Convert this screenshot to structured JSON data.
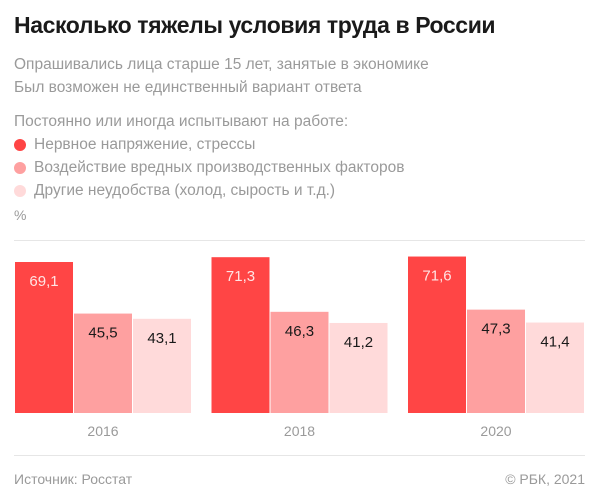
{
  "header": {
    "title": "Насколько тяжелы условия труда в России",
    "subtitle_lines": [
      "Опрашивались лица старше 15 лет, занятые в экономике",
      "Был возможен не единственный вариант ответа"
    ]
  },
  "legend": {
    "heading": "Постоянно или иногда испытывают на работе:"
  },
  "footer": {
    "source": "Источник: Росстат",
    "copyright": "© РБК, 2021"
  },
  "chart_data": {
    "type": "bar",
    "title": "Насколько тяжелы условия труда в России",
    "xlabel": "",
    "ylabel": "%",
    "categories": [
      "2016",
      "2018",
      "2020"
    ],
    "series": [
      {
        "name": "Нервное напряжение, стрессы",
        "color": "#ff4545",
        "label_color": "#ffe4e4",
        "values": [
          69.1,
          71.3,
          71.6
        ],
        "labels": [
          "69,1",
          "71,3",
          "71,6"
        ]
      },
      {
        "name": "Воздействие вредных производственных факторов",
        "color": "#fea0a0",
        "label_color": "#1a1a1a",
        "values": [
          45.5,
          46.3,
          47.3
        ],
        "labels": [
          "45,5",
          "46,3",
          "47,3"
        ]
      },
      {
        "name": "Другие неудобства (холод, сырость и т.д.)",
        "color": "#ffdada",
        "label_color": "#1a1a1a",
        "values": [
          43.1,
          41.2,
          41.4
        ],
        "labels": [
          "43,1",
          "41,2",
          "41,4"
        ]
      }
    ],
    "ylim": [
      0,
      78
    ],
    "grid": false,
    "legend_position": "top-left"
  }
}
